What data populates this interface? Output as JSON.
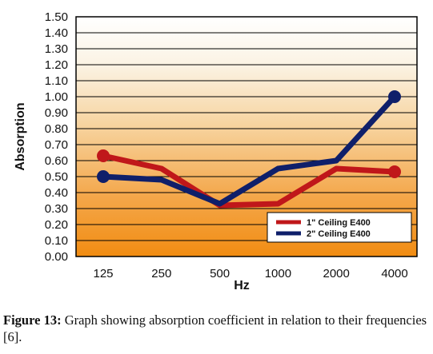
{
  "chart_data": {
    "type": "line",
    "title": "",
    "xlabel": "Hz",
    "ylabel": "Absorption",
    "categories": [
      "125",
      "250",
      "500",
      "1000",
      "2000",
      "4000"
    ],
    "ylim": [
      0,
      1.5
    ],
    "yticks": [
      "0.00",
      "0.10",
      "0.20",
      "0.30",
      "0.40",
      "0.50",
      "0.60",
      "0.70",
      "0.80",
      "0.90",
      "1.00",
      "1.10",
      "1.20",
      "1.30",
      "1.40",
      "1.50"
    ],
    "grid": true,
    "legend_position": "bottom-right",
    "series": [
      {
        "name": "1\" Ceiling E400",
        "color": "#c0171a",
        "values": [
          0.63,
          0.55,
          0.32,
          0.33,
          0.55,
          0.53
        ]
      },
      {
        "name": "2\" Ceiling E400",
        "color": "#0f1f6a",
        "values": [
          0.5,
          0.48,
          0.33,
          0.55,
          0.6,
          1.0
        ]
      }
    ]
  },
  "caption": {
    "label": "Figure 13:",
    "text": " Graph showing absorption coefficient in relation to their frequencies [6]."
  }
}
